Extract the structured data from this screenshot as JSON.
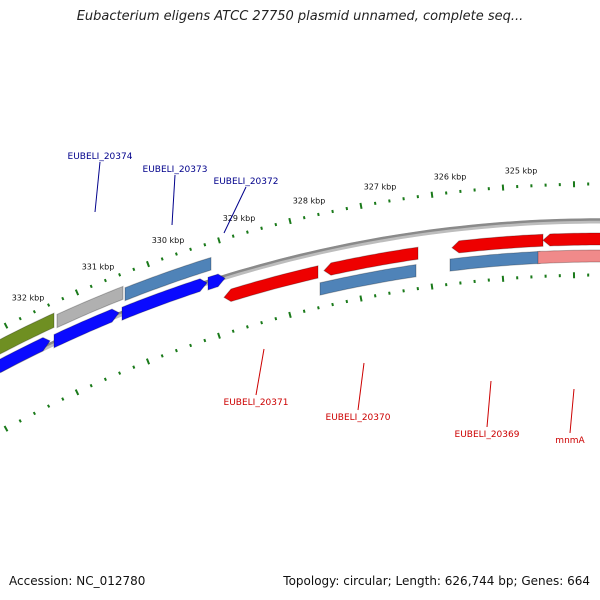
{
  "title": "Eubacterium eligens ATCC 27750 plasmid unnamed, complete seq...",
  "footer": {
    "accession": "Accession: NC_012780",
    "summary": "Topology: circular; Length: 626,744 bp; Genes: 664"
  },
  "colors": {
    "forward_cds": "#0a0aff",
    "reverse_cds": "#ee0000",
    "rna_forward": "#4f83b8",
    "pseudo_forward": "#b0b0b0",
    "olive_feature": "#6f8f22",
    "mnmA_feature": "#f08a8a",
    "backbone": "#8a8a8a",
    "tick": "#1a7a1a",
    "label_forward": "#00008b",
    "label_reverse": "#cc0000"
  },
  "scale_ticks": [
    "332 kbp",
    "331 kbp",
    "330 kbp",
    "329 kbp",
    "328 kbp",
    "327 kbp",
    "326 kbp",
    "325 kbp"
  ],
  "genes": {
    "forward": [
      "EUBELI_20374",
      "EUBELI_20373",
      "EUBELI_20372"
    ],
    "reverse": [
      "EUBELI_20371",
      "EUBELI_20370",
      "EUBELI_20369",
      "mnmA"
    ]
  }
}
